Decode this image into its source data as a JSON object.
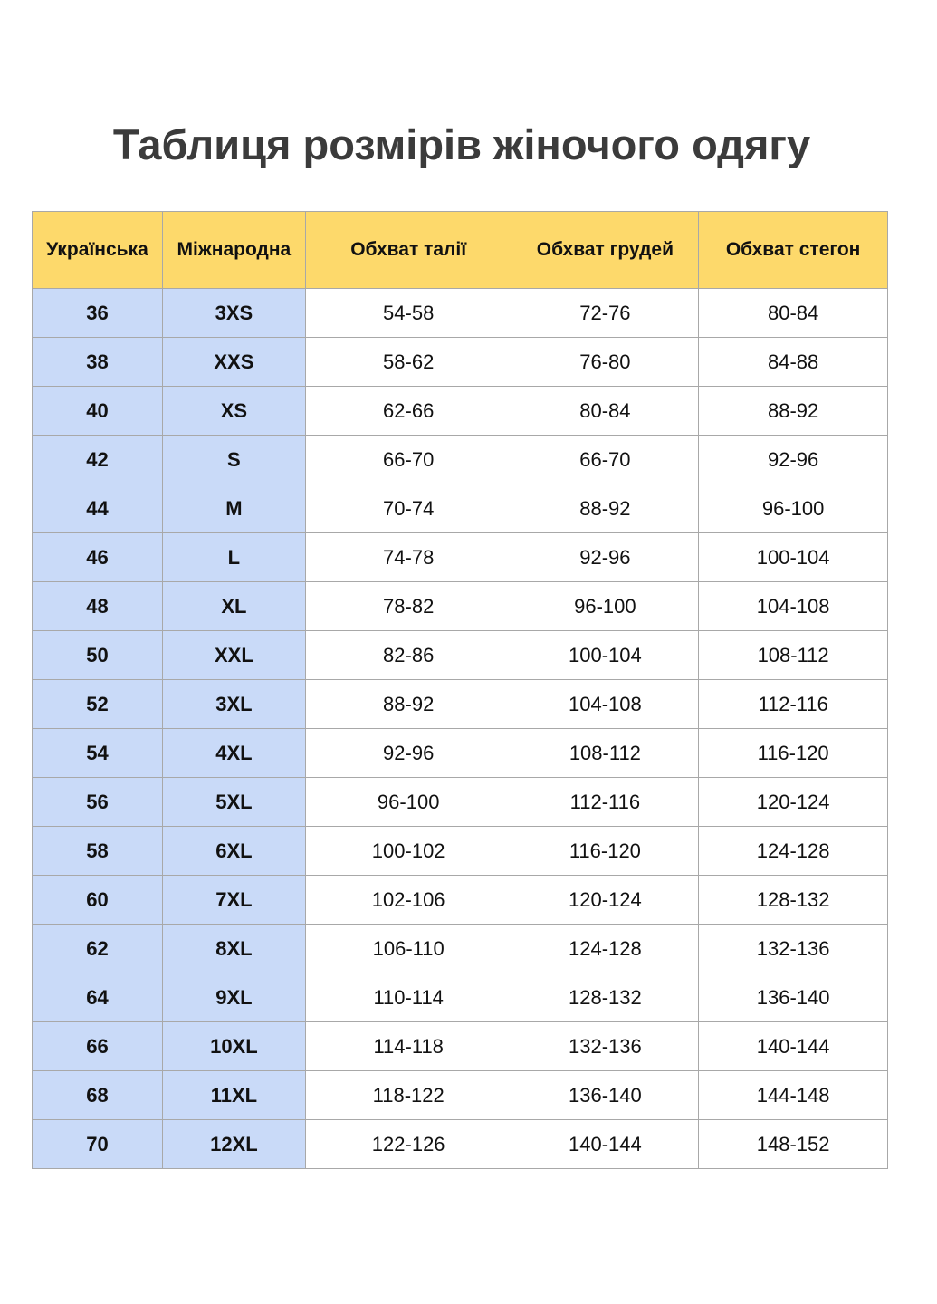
{
  "title": "Таблиця розмірів жіночого одягу",
  "table": {
    "headers": [
      "Українська",
      "Міжнародна",
      "Обхват талії",
      "Обхват грудей",
      "Обхват стегон"
    ],
    "rows": [
      [
        "36",
        "3XS",
        "54-58",
        "72-76",
        "80-84"
      ],
      [
        "38",
        "XXS",
        "58-62",
        "76-80",
        "84-88"
      ],
      [
        "40",
        "XS",
        "62-66",
        "80-84",
        "88-92"
      ],
      [
        "42",
        "S",
        "66-70",
        "66-70",
        "92-96"
      ],
      [
        "44",
        "M",
        "70-74",
        "88-92",
        "96-100"
      ],
      [
        "46",
        "L",
        "74-78",
        "92-96",
        "100-104"
      ],
      [
        "48",
        "XL",
        "78-82",
        "96-100",
        "104-108"
      ],
      [
        "50",
        "XXL",
        "82-86",
        "100-104",
        "108-112"
      ],
      [
        "52",
        "3XL",
        "88-92",
        "104-108",
        "112-116"
      ],
      [
        "54",
        "4XL",
        "92-96",
        "108-112",
        "116-120"
      ],
      [
        "56",
        "5XL",
        "96-100",
        "112-116",
        "120-124"
      ],
      [
        "58",
        "6XL",
        "100-102",
        "116-120",
        "124-128"
      ],
      [
        "60",
        "7XL",
        "102-106",
        "120-124",
        "128-132"
      ],
      [
        "62",
        "8XL",
        "106-110",
        "124-128",
        "132-136"
      ],
      [
        "64",
        "9XL",
        "110-114",
        "128-132",
        "136-140"
      ],
      [
        "66",
        "10XL",
        "114-118",
        "132-136",
        "140-144"
      ],
      [
        "68",
        "11XL",
        "118-122",
        "136-140",
        "144-148"
      ],
      [
        "70",
        "12XL",
        "122-126",
        "140-144",
        "148-152"
      ]
    ]
  },
  "colors": {
    "header": "#fdd96b",
    "size_columns": "#c9daf8",
    "border": "#a8a8a8"
  }
}
